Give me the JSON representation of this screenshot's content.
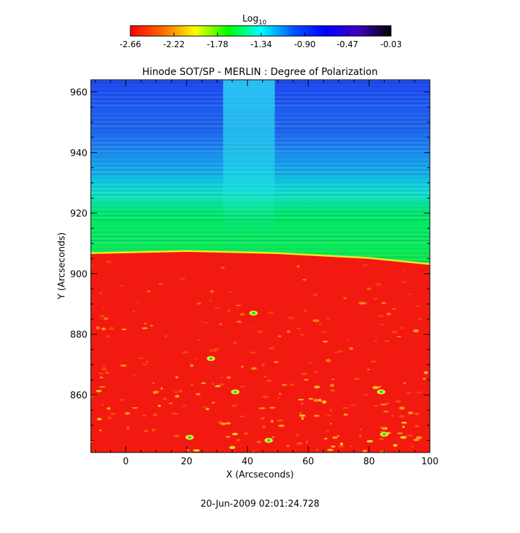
{
  "chart_data": {
    "type": "heatmap",
    "title": "Hinode SOT/SP - MERLIN : Degree of Polarization",
    "xlabel": "X (Arcseconds)",
    "ylabel": "Y (Arcseconds)",
    "timestamp": "20-Jun-2009 02:01:24.728",
    "xlim": [
      -11.5,
      100
    ],
    "ylim": [
      841,
      964
    ],
    "x_ticks": [
      "0",
      "20",
      "40",
      "60",
      "80",
      "100"
    ],
    "y_ticks": [
      "860",
      "880",
      "900",
      "920",
      "940",
      "960"
    ],
    "grid": false,
    "colorbar": {
      "label_base": "Log",
      "label_sub": "10",
      "range": [
        -2.66,
        -0.03
      ],
      "tick_labels": [
        "-2.66",
        "-2.22",
        "-1.78",
        "-1.34",
        "-0.90",
        "-0.47",
        "-0.03"
      ],
      "colors": [
        "#ff0000",
        "#ff6a00",
        "#ffff00",
        "#00ff00",
        "#00ffff",
        "#0055ff",
        "#0000ff",
        "#4000c0",
        "#000000"
      ]
    },
    "limb_y": [
      {
        "x": -11.5,
        "y": 906.8
      },
      {
        "x": 20,
        "y": 907.5
      },
      {
        "x": 50,
        "y": 906.8
      },
      {
        "x": 80,
        "y": 905.2
      },
      {
        "x": 100,
        "y": 903.2
      }
    ]
  }
}
